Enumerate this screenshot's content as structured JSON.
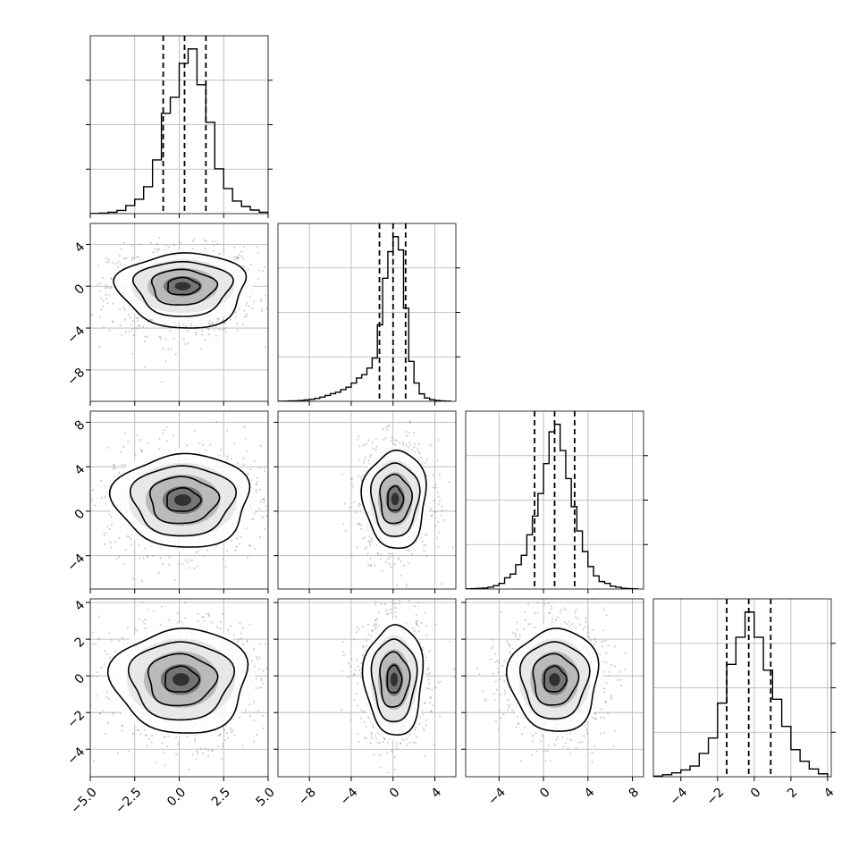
{
  "chart_data": {
    "type": "corner",
    "n_params": 4,
    "grid": true,
    "title": "",
    "parameters": [
      {
        "index": 0,
        "label": "",
        "range": [
          -5.0,
          5.0
        ],
        "ticks": [
          -5.0,
          -2.5,
          0.0,
          2.5,
          5.0
        ],
        "tick_labels": [
          "−5.0",
          "−2.5",
          "0.0",
          "2.5",
          "5.0"
        ],
        "quantiles": [
          -0.9,
          0.3,
          1.5
        ]
      },
      {
        "index": 1,
        "label": "",
        "range": [
          -11.0,
          6.0
        ],
        "ticks": [
          -8,
          -4,
          0,
          4
        ],
        "tick_labels": [
          "−8",
          "−4",
          "0",
          "4"
        ],
        "quantiles": [
          -1.3,
          0.0,
          1.2
        ]
      },
      {
        "index": 2,
        "label": "",
        "range": [
          -7.0,
          9.0
        ],
        "ticks": [
          -4,
          0,
          4,
          8
        ],
        "tick_labels": [
          "−4",
          "0",
          "4",
          "8"
        ],
        "quantiles": [
          -0.8,
          1.0,
          2.8
        ]
      },
      {
        "index": 3,
        "label": "",
        "range": [
          -5.5,
          4.2
        ],
        "ticks": [
          -4,
          -2,
          0,
          2,
          4
        ],
        "tick_labels": [
          "−4",
          "−2",
          "0",
          "2",
          "4"
        ],
        "quantiles": [
          -1.5,
          -0.3,
          0.9
        ]
      }
    ],
    "histograms": [
      {
        "param": 0,
        "bins": [
          [
            -4.75,
            0.1
          ],
          [
            -4.25,
            0.3
          ],
          [
            -3.75,
            0.8
          ],
          [
            -3.25,
            1.8
          ],
          [
            -2.75,
            4.5
          ],
          [
            -2.25,
            8
          ],
          [
            -1.75,
            15
          ],
          [
            -1.25,
            30
          ],
          [
            -0.75,
            56
          ],
          [
            -0.25,
            65
          ],
          [
            0.25,
            84
          ],
          [
            0.75,
            92
          ],
          [
            1.25,
            72
          ],
          [
            1.75,
            51
          ],
          [
            2.25,
            25
          ],
          [
            2.75,
            14
          ],
          [
            3.25,
            7
          ],
          [
            3.75,
            4
          ],
          [
            4.25,
            2
          ],
          [
            4.75,
            0.8
          ]
        ]
      },
      {
        "param": 1,
        "bins": [
          [
            -10.75,
            0.05
          ],
          [
            -10.25,
            0.1
          ],
          [
            -9.75,
            0.2
          ],
          [
            -9.25,
            0.3
          ],
          [
            -8.75,
            0.5
          ],
          [
            -8.25,
            0.8
          ],
          [
            -7.75,
            1.2
          ],
          [
            -7.25,
            1.8
          ],
          [
            -6.75,
            2.5
          ],
          [
            -6.25,
            3.5
          ],
          [
            -5.75,
            4.6
          ],
          [
            -5.25,
            5.5
          ],
          [
            -4.75,
            7
          ],
          [
            -4.25,
            8.5
          ],
          [
            -3.75,
            11
          ],
          [
            -3.25,
            14
          ],
          [
            -2.75,
            16
          ],
          [
            -2.25,
            20
          ],
          [
            -1.75,
            26
          ],
          [
            -1.25,
            46
          ],
          [
            -0.75,
            74
          ],
          [
            -0.25,
            90
          ],
          [
            0.25,
            99
          ],
          [
            0.75,
            91
          ],
          [
            1.25,
            56
          ],
          [
            1.75,
            24
          ],
          [
            2.25,
            11
          ],
          [
            2.75,
            4.5
          ],
          [
            3.25,
            2
          ],
          [
            3.75,
            1
          ],
          [
            4.25,
            0.5
          ],
          [
            4.75,
            0.2
          ],
          [
            5.25,
            0.1
          ]
        ]
      },
      {
        "param": 2,
        "bins": [
          [
            -6.75,
            0.1
          ],
          [
            -6.25,
            0.2
          ],
          [
            -5.75,
            0.3
          ],
          [
            -5.25,
            0.5
          ],
          [
            -4.75,
            1
          ],
          [
            -4.25,
            1.8
          ],
          [
            -3.75,
            3
          ],
          [
            -3.25,
            6
          ],
          [
            -2.75,
            8
          ],
          [
            -2.25,
            13
          ],
          [
            -1.75,
            18
          ],
          [
            -1.25,
            29
          ],
          [
            -0.75,
            39
          ],
          [
            -0.25,
            51
          ],
          [
            0.25,
            67
          ],
          [
            0.75,
            84
          ],
          [
            1.25,
            88
          ],
          [
            1.75,
            74
          ],
          [
            2.25,
            59
          ],
          [
            2.75,
            44
          ],
          [
            3.25,
            31
          ],
          [
            3.75,
            20
          ],
          [
            4.25,
            12
          ],
          [
            4.75,
            7
          ],
          [
            5.25,
            4
          ],
          [
            5.75,
            3
          ],
          [
            6.25,
            1.5
          ],
          [
            6.75,
            1
          ],
          [
            7.25,
            0.4
          ],
          [
            7.75,
            0.2
          ],
          [
            8.25,
            0.1
          ]
        ]
      },
      {
        "param": 3,
        "bins": [
          [
            -5.25,
            0.3
          ],
          [
            -4.75,
            1
          ],
          [
            -4.25,
            2
          ],
          [
            -3.75,
            3.5
          ],
          [
            -3.25,
            5.5
          ],
          [
            -2.75,
            12
          ],
          [
            -2.25,
            20
          ],
          [
            -1.75,
            38
          ],
          [
            -1.25,
            58
          ],
          [
            -0.75,
            72
          ],
          [
            -0.25,
            85
          ],
          [
            0.25,
            72
          ],
          [
            0.75,
            55
          ],
          [
            1.25,
            40
          ],
          [
            1.75,
            26
          ],
          [
            2.25,
            14
          ],
          [
            2.75,
            8
          ],
          [
            3.25,
            4
          ],
          [
            3.75,
            1.5
          ]
        ]
      }
    ],
    "pairs": [
      {
        "x": 0,
        "y": 1,
        "center": [
          0.2,
          0.0
        ],
        "sx": 1.8,
        "sy": 1.6,
        "rho": 0.0,
        "skew_y": -2.0,
        "contours": [
          0.5,
          1.0,
          1.5,
          2.0
        ]
      },
      {
        "x": 0,
        "y": 2,
        "center": [
          0.2,
          1.0
        ],
        "sx": 1.9,
        "sy": 2.1,
        "rho": 0.0,
        "skew_y": 0.0,
        "contours": [
          0.5,
          1.0,
          1.5,
          2.0
        ]
      },
      {
        "x": 1,
        "y": 2,
        "center": [
          0.2,
          1.1
        ],
        "sx": 1.5,
        "sy": 2.2,
        "rho": -0.1,
        "skew_y": 0.0,
        "contours": [
          0.5,
          1.0,
          1.5,
          2.0
        ]
      },
      {
        "x": 0,
        "y": 3,
        "center": [
          0.1,
          -0.2
        ],
        "sx": 1.9,
        "sy": 1.4,
        "rho": 0.0,
        "skew_y": -0.3,
        "contours": [
          0.5,
          1.0,
          1.5,
          2.0
        ]
      },
      {
        "x": 1,
        "y": 3,
        "center": [
          0.1,
          -0.2
        ],
        "sx": 1.4,
        "sy": 1.5,
        "rho": 0.0,
        "skew_y": 0.0,
        "contours": [
          0.5,
          1.0,
          1.5,
          2.0
        ]
      },
      {
        "x": 2,
        "y": 3,
        "center": [
          1.0,
          -0.2
        ],
        "sx": 2.0,
        "sy": 1.4,
        "rho": 0.0,
        "skew_y": 0.0,
        "contours": [
          0.5,
          1.0,
          1.5,
          2.0
        ]
      }
    ]
  }
}
